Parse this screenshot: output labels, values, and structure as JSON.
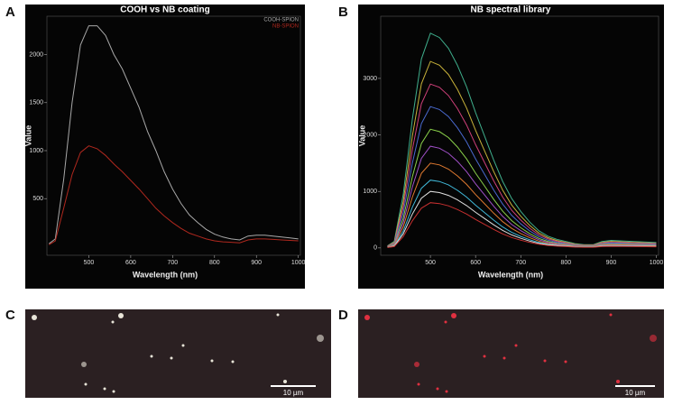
{
  "panel_labels": [
    "A",
    "B",
    "C",
    "D"
  ],
  "scale_bars": [
    "10 µm",
    "10 µm"
  ],
  "chart_data": [
    {
      "type": "line",
      "title": "COOH vs NB coating",
      "xlabel": "Wavelength (nm)",
      "ylabel": "Value",
      "legend": "upper right",
      "x": [
        405,
        420,
        440,
        460,
        480,
        500,
        520,
        540,
        560,
        580,
        600,
        620,
        640,
        660,
        680,
        700,
        720,
        740,
        760,
        780,
        800,
        820,
        840,
        860,
        880,
        900,
        920,
        940,
        960,
        980,
        1000
      ],
      "series": [
        {
          "name": "COOH-SPION",
          "color": "#a8a8a8",
          "values": [
            30,
            80,
            700,
            1500,
            2100,
            2300,
            2300,
            2200,
            2000,
            1850,
            1650,
            1450,
            1200,
            1000,
            780,
            600,
            450,
            330,
            250,
            180,
            130,
            100,
            80,
            70,
            110,
            120,
            120,
            110,
            100,
            90,
            80
          ]
        },
        {
          "name": "NB-SPION",
          "color": "#b0281e",
          "values": [
            20,
            60,
            400,
            750,
            980,
            1050,
            1020,
            950,
            860,
            780,
            690,
            600,
            500,
            400,
            320,
            250,
            190,
            140,
            110,
            80,
            60,
            50,
            45,
            40,
            70,
            80,
            80,
            75,
            70,
            65,
            60
          ]
        }
      ],
      "xlim": [
        400,
        1005
      ],
      "ylim": [
        -90,
        2400
      ],
      "xticks": [
        500,
        600,
        700,
        800,
        900,
        1000
      ],
      "yticks": [
        500,
        1000,
        1500,
        2000
      ]
    },
    {
      "type": "line",
      "title": "NB spectral library",
      "xlabel": "Wavelength (nm)",
      "ylabel": "Value",
      "x": [
        405,
        420,
        440,
        460,
        480,
        500,
        520,
        540,
        560,
        580,
        600,
        620,
        640,
        660,
        680,
        700,
        720,
        740,
        760,
        780,
        800,
        820,
        840,
        860,
        880,
        900,
        950,
        1000
      ],
      "series": [
        {
          "color": "#3fae8c",
          "values": [
            38,
            114,
            950,
            2280,
            3344,
            3800,
            3724,
            3534,
            3230,
            2850,
            2394,
            1976,
            1558,
            1178,
            874,
            646,
            456,
            304,
            209,
            152,
            114,
            76,
            57,
            57,
            114,
            133,
            114,
            95
          ]
        },
        {
          "color": "#c8b23a",
          "values": [
            33,
            99,
            825,
            1980,
            2904,
            3300,
            3234,
            3069,
            2805,
            2475,
            2079,
            1716,
            1353,
            1023,
            759,
            561,
            396,
            264,
            182,
            132,
            99,
            66,
            50,
            50,
            99,
            116,
            99,
            83
          ]
        },
        {
          "color": "#d0407a",
          "values": [
            29,
            87,
            725,
            1740,
            2552,
            2900,
            2842,
            2697,
            2465,
            2175,
            1827,
            1508,
            1189,
            899,
            667,
            493,
            348,
            232,
            160,
            116,
            87,
            58,
            44,
            44,
            87,
            102,
            87,
            73
          ]
        },
        {
          "color": "#4a6ad0",
          "values": [
            25,
            75,
            625,
            1500,
            2200,
            2500,
            2450,
            2325,
            2125,
            1875,
            1575,
            1300,
            1025,
            775,
            575,
            425,
            300,
            200,
            138,
            100,
            75,
            50,
            38,
            38,
            75,
            88,
            75,
            63
          ]
        },
        {
          "color": "#8ad04a",
          "values": [
            21,
            63,
            525,
            1260,
            1848,
            2100,
            2058,
            1953,
            1785,
            1575,
            1323,
            1092,
            861,
            651,
            483,
            357,
            252,
            168,
            116,
            84,
            63,
            42,
            32,
            32,
            63,
            74,
            63,
            53
          ]
        },
        {
          "color": "#a050c8",
          "values": [
            18,
            54,
            450,
            1080,
            1584,
            1800,
            1764,
            1674,
            1530,
            1350,
            1134,
            936,
            738,
            558,
            414,
            306,
            216,
            144,
            99,
            72,
            54,
            36,
            27,
            27,
            54,
            63,
            54,
            45
          ]
        },
        {
          "color": "#e07a30",
          "values": [
            15,
            45,
            375,
            900,
            1320,
            1500,
            1470,
            1395,
            1275,
            1125,
            945,
            780,
            615,
            465,
            345,
            255,
            180,
            120,
            83,
            60,
            45,
            30,
            23,
            23,
            45,
            53,
            45,
            38
          ]
        },
        {
          "color": "#40b8d8",
          "values": [
            12,
            36,
            300,
            720,
            1056,
            1200,
            1176,
            1116,
            1020,
            900,
            756,
            624,
            492,
            372,
            276,
            204,
            144,
            96,
            66,
            48,
            36,
            24,
            18,
            18,
            36,
            42,
            36,
            30
          ]
        },
        {
          "color": "#e0e0e0",
          "values": [
            10,
            30,
            250,
            600,
            880,
            1000,
            980,
            930,
            850,
            750,
            630,
            520,
            410,
            310,
            230,
            170,
            120,
            80,
            55,
            40,
            30,
            20,
            15,
            15,
            30,
            35,
            30,
            25
          ]
        },
        {
          "color": "#c83030",
          "values": [
            8,
            24,
            200,
            480,
            704,
            800,
            784,
            744,
            680,
            600,
            504,
            416,
            328,
            248,
            184,
            136,
            96,
            64,
            44,
            32,
            24,
            16,
            12,
            12,
            24,
            28,
            24,
            20
          ]
        }
      ],
      "xlim": [
        390,
        1005
      ],
      "ylim": [
        -130,
        4100
      ],
      "xticks": [
        500,
        600,
        700,
        800,
        900,
        1000
      ],
      "yticks": [
        0,
        1000,
        2000,
        3000
      ]
    }
  ]
}
